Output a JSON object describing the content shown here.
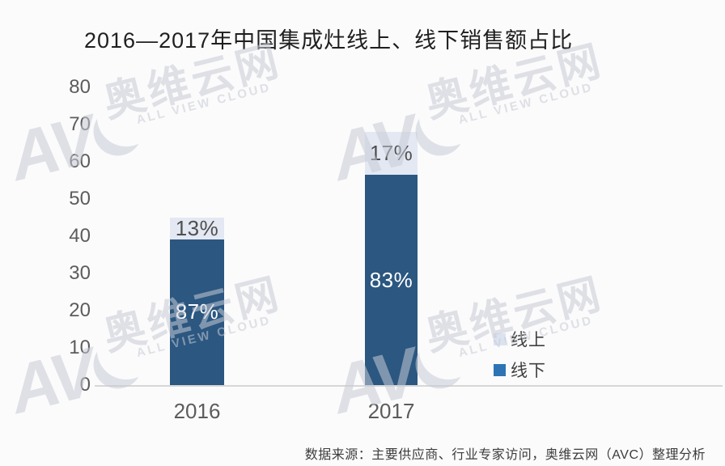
{
  "page": {
    "background": "#fbfbfb"
  },
  "title": "2016—2017年中国集成灶线上、线下销售额占比",
  "source_note": "数据来源：主要供应商、行业专家访问，奥维云网（AVC）整理分析",
  "watermark": {
    "logo_letters": "AV",
    "cn": "奥维云网",
    "en": "ALL VIEW CLOUD"
  },
  "legend": {
    "items": [
      {
        "label": "线上",
        "slug": "online",
        "color": "#dce3f0"
      },
      {
        "label": "线下",
        "slug": "offline",
        "color": "#2e74b5"
      }
    ]
  },
  "chart_data": {
    "type": "bar",
    "subtype": "stacked",
    "title": "2016—2017年中国集成灶线上、线下销售额占比",
    "categories": [
      "2016",
      "2017"
    ],
    "series": [
      {
        "name": "线下",
        "slug": "offline",
        "color": "#2b5780",
        "label_color": "#ffffff",
        "share_pct": [
          87,
          83
        ]
      },
      {
        "name": "线上",
        "slug": "online",
        "color": "#e3e8f3",
        "label_color": "#4f4f4f",
        "share_pct": [
          13,
          17
        ]
      }
    ],
    "bar_totals_axis_units": [
      45,
      68
    ],
    "bars": [
      {
        "category": "2016",
        "total": 45,
        "segments": [
          {
            "series": "线下",
            "slug": "offline",
            "pct": 87,
            "label": "87%"
          },
          {
            "series": "线上",
            "slug": "online",
            "pct": 13,
            "label": "13%"
          }
        ]
      },
      {
        "category": "2017",
        "total": 68,
        "segments": [
          {
            "series": "线下",
            "slug": "offline",
            "pct": 83,
            "label": "83%"
          },
          {
            "series": "线上",
            "slug": "online",
            "pct": 17,
            "label": "17%"
          }
        ]
      }
    ],
    "y_axis": {
      "min": 0,
      "max": 80,
      "tick_interval": 10,
      "ticks": [
        0,
        10,
        20,
        30,
        40,
        50,
        60,
        70,
        80
      ]
    },
    "x_axis": {
      "labels": [
        "2016",
        "2017"
      ]
    },
    "grid": false,
    "legend_position": "right-middle"
  }
}
